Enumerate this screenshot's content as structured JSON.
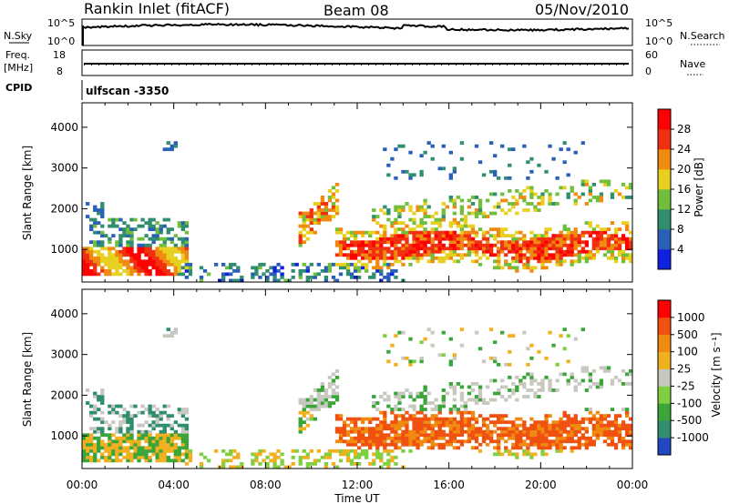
{
  "header": {
    "station": "Rankin Inlet (fitACF)",
    "beam": "Beam 08",
    "date": "05/Nov/2010"
  },
  "top_panels": {
    "nsky_label": "N.Sky",
    "nsky_ticks": [
      "10^5",
      "10^0"
    ],
    "nsearch_label": "N.Search",
    "nsearch_ticks": [
      "10^5",
      "10^0"
    ],
    "freq_label": "Freq.",
    "freq_unit": "[MHz]",
    "freq_ticks": [
      "18",
      "8"
    ],
    "nave_label": "Nave",
    "nave_ticks": [
      "60",
      "0"
    ],
    "cpid_label": "CPID",
    "cpid_value": "ulfscan -3350"
  },
  "chart_data": [
    {
      "type": "heatmap",
      "title": "",
      "quantity": "Power",
      "colorbar_label": "Power [dB]",
      "ylabel": "Slant Range [km]",
      "xlabel": "",
      "ylim": [
        200,
        4600
      ],
      "y_ticks": [
        1000,
        2000,
        3000,
        4000
      ],
      "y_tick_labels": [
        "1000",
        "2000",
        "3000",
        "4000"
      ],
      "x_ticks": [
        "00:00",
        "04:00",
        "08:00",
        "12:00",
        "16:00",
        "20:00",
        "00:00"
      ],
      "colorbar_ticks": [
        "4",
        "8",
        "12",
        "16",
        "20",
        "24",
        "28"
      ],
      "colorbar_colors": [
        "#1020e0",
        "#2a5fb8",
        "#2f8e6e",
        "#6fbf3c",
        "#e8d020",
        "#f08a10",
        "#f03010",
        "#ff0000"
      ],
      "colorbar_range": [
        0,
        30
      ]
    },
    {
      "type": "heatmap",
      "title": "",
      "quantity": "Velocity",
      "colorbar_label": "Velocity [m s⁻¹]",
      "ylabel": "Slant Range [km]",
      "xlabel": "Time UT",
      "ylim": [
        200,
        4600
      ],
      "y_ticks": [
        1000,
        2000,
        3000,
        4000
      ],
      "y_tick_labels": [
        "1000",
        "2000",
        "3000",
        "4000"
      ],
      "x_ticks": [
        "00:00",
        "04:00",
        "08:00",
        "12:00",
        "16:00",
        "20:00",
        "00:00"
      ],
      "colorbar_ticks": [
        "1000",
        "500",
        "100",
        "25",
        "-25",
        "-100",
        "-500",
        "-1000"
      ],
      "colorbar_colors": [
        "#2048c0",
        "#2f8e6e",
        "#3aa63a",
        "#7fd040",
        "#c8c8c0",
        "#f0b020",
        "#f08a10",
        "#f05010",
        "#ff0000"
      ]
    }
  ]
}
